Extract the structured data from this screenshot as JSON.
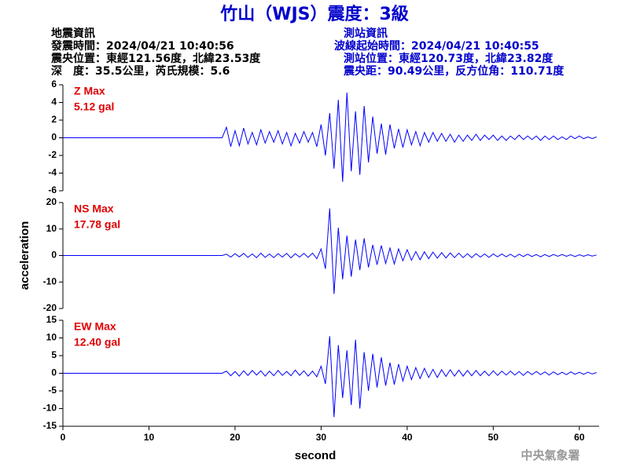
{
  "header": {
    "title": "竹山（WJS）震度：3級",
    "left": [
      "地震資訊",
      "發震時間：2024/04/21 10:40:56",
      "震央位置：東經121.56度，北緯23.53度",
      "深　度：35.5公里，芮氏規模：5.6"
    ],
    "right": [
      "測站資訊",
      "波線起始時間：2024/04/21 10:40:55",
      "測站位置：東經120.73度，北緯23.82度",
      "震央距：90.49公里，反方位角：110.71度"
    ]
  },
  "footer": "中央氣象署",
  "chart_data": [
    {
      "type": "line",
      "label": "Z Max",
      "max_label": "5.12 gal",
      "color": "#0000ff",
      "label_color": "#e00000",
      "xlim": [
        0,
        62.3
      ],
      "ylim": [
        -6,
        6
      ],
      "yticks": [
        -6,
        -4,
        -2,
        0,
        2,
        4,
        6
      ],
      "x": [
        0,
        18.5,
        19,
        19.5,
        20,
        20.5,
        21,
        21.5,
        22,
        22.5,
        23,
        23.5,
        24,
        24.5,
        25,
        25.5,
        26,
        26.5,
        27,
        27.5,
        28,
        28.5,
        29,
        29.5,
        30,
        30.5,
        31,
        31.5,
        32,
        32.5,
        33,
        33.5,
        34,
        34.5,
        35,
        35.5,
        36,
        36.5,
        37,
        37.5,
        38,
        38.5,
        39,
        39.5,
        40,
        40.5,
        41,
        41.5,
        42,
        42.5,
        43,
        43.5,
        44,
        44.5,
        45,
        45.5,
        46,
        46.5,
        47,
        47.5,
        48,
        48.5,
        49,
        49.5,
        50,
        50.5,
        51,
        51.5,
        52,
        52.5,
        53,
        53.5,
        54,
        54.5,
        55,
        55.5,
        56,
        56.5,
        57,
        57.5,
        58,
        58.5,
        59,
        59.5,
        60,
        60.5,
        61,
        61.5,
        62
      ],
      "values": [
        0,
        0,
        1.2,
        -1.0,
        0.8,
        -0.9,
        1.1,
        -0.7,
        0.6,
        -0.8,
        0.9,
        -0.6,
        0.7,
        -0.5,
        0.8,
        -0.7,
        0.6,
        -0.9,
        0.5,
        -0.6,
        0.7,
        -0.5,
        0.6,
        -1.0,
        1.5,
        -2.0,
        2.8,
        -3.5,
        4.3,
        -5.0,
        5.12,
        -3.8,
        3.0,
        -4.2,
        3.6,
        -2.8,
        2.4,
        -1.8,
        1.6,
        -1.9,
        1.5,
        -1.2,
        1.0,
        -1.1,
        0.9,
        -0.8,
        0.7,
        -0.9,
        0.6,
        -0.5,
        0.6,
        -0.4,
        0.5,
        -0.4,
        0.4,
        -0.5,
        0.3,
        -0.4,
        0.3,
        -0.3,
        0.4,
        -0.3,
        0.3,
        -0.2,
        0.3,
        -0.3,
        0.2,
        -0.3,
        0.2,
        -0.2,
        0.3,
        -0.2,
        0.2,
        -0.2,
        0.2,
        -0.3,
        0.2,
        -0.2,
        0.2,
        -0.2,
        0.1,
        -0.2,
        0.2,
        -0.1,
        0.2,
        -0.1,
        0.1,
        -0.1,
        0.1
      ]
    },
    {
      "type": "line",
      "label": "NS Max",
      "max_label": "17.78 gal",
      "color": "#0000ff",
      "label_color": "#e00000",
      "ylabel": "acceleration",
      "xlim": [
        0,
        62.3
      ],
      "ylim": [
        -20,
        20
      ],
      "yticks": [
        -20,
        -10,
        0,
        10,
        20
      ],
      "x": [
        0,
        18.5,
        19,
        19.5,
        20,
        20.5,
        21,
        21.5,
        22,
        22.5,
        23,
        23.5,
        24,
        24.5,
        25,
        25.5,
        26,
        26.5,
        27,
        27.5,
        28,
        28.5,
        29,
        29.5,
        30,
        30.5,
        31,
        31.5,
        32,
        32.5,
        33,
        33.5,
        34,
        34.5,
        35,
        35.5,
        36,
        36.5,
        37,
        37.5,
        38,
        38.5,
        39,
        39.5,
        40,
        40.5,
        41,
        41.5,
        42,
        42.5,
        43,
        43.5,
        44,
        44.5,
        45,
        45.5,
        46,
        46.5,
        47,
        47.5,
        48,
        48.5,
        49,
        49.5,
        50,
        50.5,
        51,
        51.5,
        52,
        52.5,
        53,
        53.5,
        54,
        54.5,
        55,
        55.5,
        56,
        56.5,
        57,
        57.5,
        58,
        58.5,
        59,
        59.5,
        60,
        60.5,
        61,
        61.5,
        62
      ],
      "values": [
        0,
        0,
        0.5,
        -0.6,
        0.7,
        -0.5,
        0.8,
        -0.7,
        0.6,
        -0.8,
        0.9,
        -0.7,
        0.6,
        -0.8,
        0.7,
        -0.6,
        0.8,
        -0.9,
        0.7,
        -0.6,
        0.8,
        -0.7,
        0.9,
        -1.2,
        2.5,
        -5.0,
        17.78,
        -14.5,
        10.5,
        -9.0,
        7.5,
        -8.0,
        6.0,
        -5.5,
        6.5,
        -4.5,
        4.0,
        -3.5,
        3.8,
        -3.0,
        2.8,
        -3.2,
        2.5,
        -2.0,
        2.2,
        -1.8,
        1.5,
        -1.6,
        1.4,
        -1.2,
        1.3,
        -1.0,
        1.1,
        -0.9,
        1.0,
        -0.8,
        0.9,
        -0.8,
        0.7,
        -0.8,
        0.7,
        -0.6,
        0.6,
        -0.7,
        0.6,
        -0.5,
        0.6,
        -0.5,
        0.5,
        -0.6,
        0.5,
        -0.4,
        0.5,
        -0.4,
        0.4,
        -0.5,
        0.4,
        -0.4,
        0.4,
        -0.3,
        0.4,
        -0.3,
        0.3,
        -0.4,
        0.3,
        -0.3,
        0.3,
        -0.2,
        0.2
      ]
    },
    {
      "type": "line",
      "label": "EW Max",
      "max_label": "12.40 gal",
      "color": "#0000ff",
      "label_color": "#e00000",
      "xlabel": "second",
      "xlim": [
        0,
        62.3
      ],
      "xticks": [
        0,
        10,
        20,
        30,
        40,
        50,
        60
      ],
      "ylim": [
        -15,
        15
      ],
      "yticks": [
        -15,
        -10,
        -5,
        0,
        5,
        10,
        15
      ],
      "x": [
        0,
        18.5,
        19,
        19.5,
        20,
        20.5,
        21,
        21.5,
        22,
        22.5,
        23,
        23.5,
        24,
        24.5,
        25,
        25.5,
        26,
        26.5,
        27,
        27.5,
        28,
        28.5,
        29,
        29.5,
        30,
        30.5,
        31,
        31.5,
        32,
        32.5,
        33,
        33.5,
        34,
        34.5,
        35,
        35.5,
        36,
        36.5,
        37,
        37.5,
        38,
        38.5,
        39,
        39.5,
        40,
        40.5,
        41,
        41.5,
        42,
        42.5,
        43,
        43.5,
        44,
        44.5,
        45,
        45.5,
        46,
        46.5,
        47,
        47.5,
        48,
        48.5,
        49,
        49.5,
        50,
        50.5,
        51,
        51.5,
        52,
        52.5,
        53,
        53.5,
        54,
        54.5,
        55,
        55.5,
        56,
        56.5,
        57,
        57.5,
        58,
        58.5,
        59,
        59.5,
        60,
        60.5,
        61,
        61.5,
        62
      ],
      "values": [
        0,
        0,
        0.6,
        -0.7,
        0.5,
        -0.8,
        0.7,
        -0.6,
        0.8,
        -0.5,
        0.7,
        -0.8,
        0.6,
        -0.7,
        0.8,
        -0.6,
        0.5,
        -0.7,
        0.9,
        -0.6,
        0.7,
        -0.8,
        0.6,
        -1.0,
        2.0,
        -3.0,
        10.5,
        -12.4,
        8.0,
        -7.0,
        6.5,
        -9.0,
        9.5,
        -10.0,
        6.0,
        -5.0,
        5.5,
        -4.0,
        4.5,
        -3.5,
        3.0,
        -3.2,
        2.6,
        -2.2,
        2.0,
        -1.8,
        1.6,
        -1.5,
        1.4,
        -1.2,
        1.1,
        -1.2,
        1.0,
        -0.9,
        1.0,
        -0.8,
        0.9,
        -0.8,
        0.8,
        -0.7,
        0.8,
        -0.7,
        0.6,
        -0.7,
        0.7,
        -0.6,
        0.6,
        -0.5,
        0.6,
        -0.5,
        0.5,
        -0.6,
        0.5,
        -0.4,
        0.5,
        -0.4,
        0.4,
        -0.5,
        0.4,
        -0.4,
        0.3,
        -0.4,
        0.4,
        -0.3,
        0.3,
        -0.3,
        0.3,
        -0.2,
        0.2
      ]
    }
  ]
}
